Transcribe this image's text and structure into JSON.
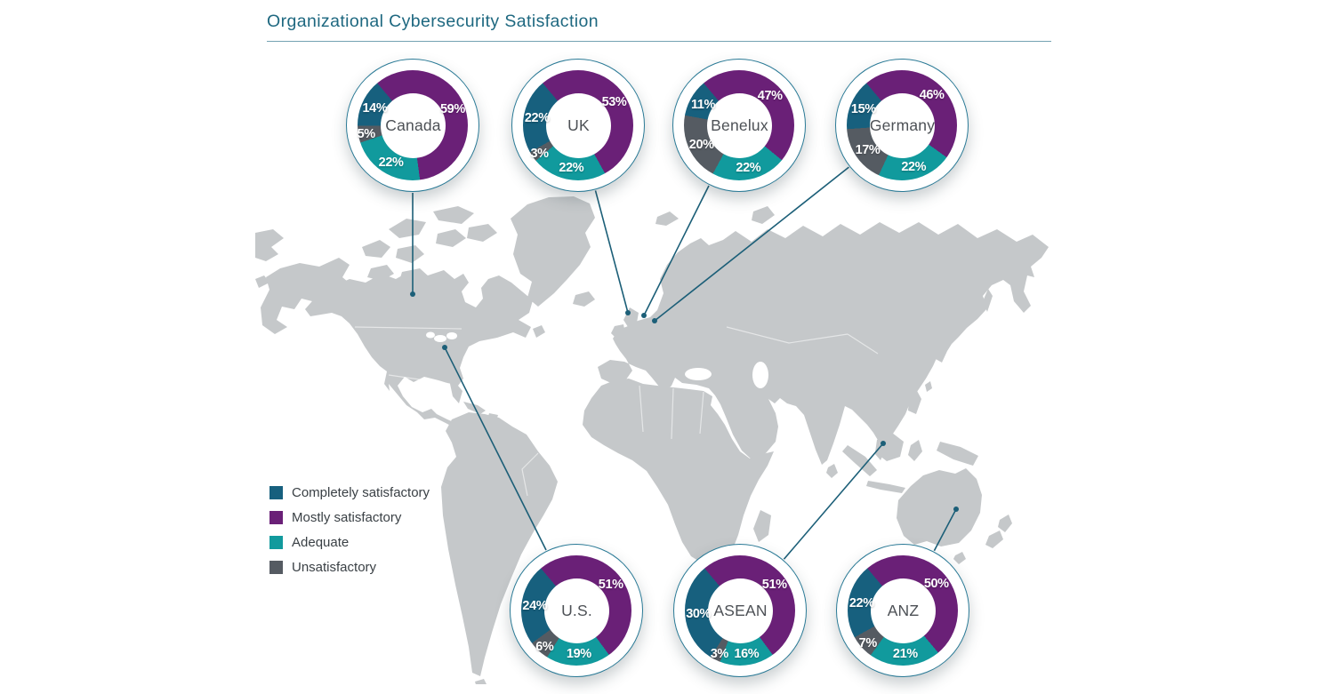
{
  "header": {
    "title": "Organizational Cybersecurity Satisfaction"
  },
  "colors": {
    "completely": "#17607E",
    "mostly": "#6A2077",
    "adequate": "#119A9D",
    "unsatisfactory": "#555B62",
    "title_text": "#1E6880",
    "leader_line": "#1C5F78",
    "map_land": "#C5C8CA",
    "center_text": "#4D5156"
  },
  "legend": {
    "items": [
      {
        "key": "completely",
        "label": "Completely satisfactory",
        "color": "#17607E"
      },
      {
        "key": "mostly",
        "label": "Mostly satisfactory",
        "color": "#6A2077"
      },
      {
        "key": "adequate",
        "label": "Adequate",
        "color": "#119A9D"
      },
      {
        "key": "unsatisfactory",
        "label": "Unsatisfactory",
        "color": "#555B62"
      }
    ]
  },
  "chart_data": {
    "type": "pie",
    "subtype": "donut",
    "title": "Organizational Cybersecurity Satisfaction",
    "unit": "%",
    "categories": [
      "Completely satisfactory",
      "Mostly satisfactory",
      "Adequate",
      "Unsatisfactory"
    ],
    "segment_draw_order_clockwise": [
      "Mostly satisfactory",
      "Adequate",
      "Unsatisfactory",
      "Completely satisfactory"
    ],
    "start_angle_deg_from_12oclock": -40,
    "legend_position": "middle-left",
    "regions": [
      {
        "name": "Canada",
        "values": [
          14,
          59,
          22,
          5
        ]
      },
      {
        "name": "UK",
        "values": [
          22,
          53,
          22,
          3
        ]
      },
      {
        "name": "Benelux",
        "values": [
          11,
          47,
          22,
          20
        ]
      },
      {
        "name": "Germany",
        "values": [
          15,
          46,
          22,
          17
        ]
      },
      {
        "name": "U.S.",
        "values": [
          24,
          51,
          19,
          6
        ]
      },
      {
        "name": "ASEAN",
        "values": [
          30,
          51,
          16,
          3
        ]
      },
      {
        "name": "ANZ",
        "values": [
          22,
          50,
          21,
          7
        ]
      }
    ]
  }
}
